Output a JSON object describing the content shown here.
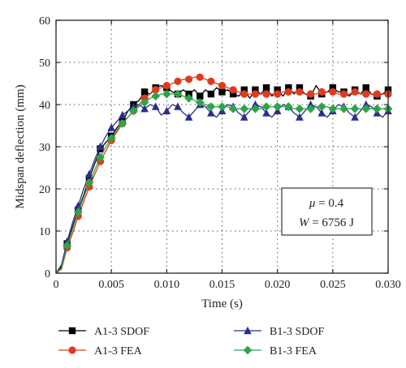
{
  "chart_data": {
    "type": "line",
    "xlabel": "Time (s)",
    "ylabel": "Midspan deflection (mm)",
    "xlim": [
      0,
      0.03
    ],
    "ylim": [
      0,
      60
    ],
    "xticks": [
      0,
      0.005,
      0.01,
      0.015,
      0.02,
      0.025,
      0.03
    ],
    "xtick_labels": [
      "0",
      "0.005",
      "0.010",
      "0.015",
      "0.020",
      "0.025",
      "0.030"
    ],
    "yticks": [
      0,
      10,
      20,
      30,
      40,
      50,
      60
    ],
    "ytick_labels": [
      "0",
      "10",
      "20",
      "30",
      "40",
      "50",
      "60"
    ],
    "grid": true,
    "legend_position": "bottom",
    "annotation": {
      "line1_symbol": "μ",
      "line1_rest": " = 0.4",
      "line2_symbol": "W",
      "line2_rest": " = 6756 J"
    },
    "series": [
      {
        "name": "A1-3 SDOF",
        "color": "#000000",
        "marker": "square",
        "x": [
          0,
          0.0005,
          0.001,
          0.0015,
          0.002,
          0.0025,
          0.003,
          0.0035,
          0.004,
          0.0045,
          0.005,
          0.0055,
          0.006,
          0.0065,
          0.007,
          0.0075,
          0.008,
          0.0085,
          0.009,
          0.0095,
          0.01,
          0.0105,
          0.011,
          0.0115,
          0.012,
          0.0125,
          0.013,
          0.0135,
          0.014,
          0.0145,
          0.015,
          0.0155,
          0.016,
          0.0165,
          0.017,
          0.0175,
          0.018,
          0.0185,
          0.019,
          0.0195,
          0.02,
          0.0205,
          0.021,
          0.0215,
          0.022,
          0.0225,
          0.023,
          0.0235,
          0.024,
          0.0245,
          0.025,
          0.0255,
          0.026,
          0.0265,
          0.027,
          0.0275,
          0.028,
          0.0285,
          0.029,
          0.0295,
          0.03
        ],
        "y": [
          0,
          1.5,
          7,
          11,
          15,
          18.5,
          22.5,
          26,
          29.5,
          31,
          32.5,
          34.5,
          36,
          38.5,
          40,
          41,
          43,
          42.5,
          44,
          44.5,
          44,
          43,
          42.5,
          43.5,
          42.5,
          43.5,
          42,
          43.5,
          42.5,
          44,
          43,
          43.5,
          42.5,
          42,
          43.5,
          41.5,
          43.5,
          42.5,
          44,
          42,
          43.5,
          42,
          44,
          42.5,
          44,
          42.5,
          42,
          44.5,
          42.5,
          43,
          44,
          43,
          43,
          42,
          43.5,
          42.5,
          44,
          42.5,
          42,
          42.5,
          43.5
        ],
        "marker_step": 2
      },
      {
        "name": "A1-3 FEA",
        "color": "#e03a1e",
        "marker": "circle",
        "x": [
          0,
          0.0005,
          0.001,
          0.0015,
          0.002,
          0.0025,
          0.003,
          0.0035,
          0.004,
          0.0045,
          0.005,
          0.0055,
          0.006,
          0.0065,
          0.007,
          0.0075,
          0.008,
          0.0085,
          0.009,
          0.0095,
          0.01,
          0.0105,
          0.011,
          0.0115,
          0.012,
          0.0125,
          0.013,
          0.0135,
          0.014,
          0.0145,
          0.015,
          0.0155,
          0.016,
          0.0165,
          0.017,
          0.0175,
          0.018,
          0.0185,
          0.019,
          0.0195,
          0.02,
          0.0205,
          0.021,
          0.0215,
          0.022,
          0.0225,
          0.023,
          0.0235,
          0.024,
          0.0245,
          0.025,
          0.0255,
          0.026,
          0.0265,
          0.027,
          0.0275,
          0.028,
          0.0285,
          0.029,
          0.0295,
          0.03
        ],
        "y": [
          0,
          1,
          6,
          9.5,
          13.5,
          17,
          20.5,
          23.5,
          26.5,
          29,
          31.5,
          33.5,
          35.5,
          37,
          38.5,
          40,
          41.5,
          42.5,
          43.5,
          44,
          44.5,
          45,
          45.5,
          46,
          46,
          46.5,
          46.5,
          46,
          45.5,
          45,
          44.5,
          44,
          43.5,
          43,
          42.5,
          42.5,
          42.5,
          42.5,
          42.5,
          42.5,
          42.5,
          43,
          43,
          43,
          43,
          42.5,
          42.5,
          42.5,
          43,
          43,
          43,
          42.5,
          42.5,
          42.5,
          43,
          42.5,
          42.5,
          42.5,
          42.5,
          42.5,
          42.5
        ],
        "marker_step": 2
      },
      {
        "name": "B1-3 SDOF",
        "color": "#2b2d8f",
        "marker": "triangle",
        "x": [
          0,
          0.0005,
          0.001,
          0.0015,
          0.002,
          0.0025,
          0.003,
          0.0035,
          0.004,
          0.0045,
          0.005,
          0.0055,
          0.006,
          0.0065,
          0.007,
          0.0075,
          0.008,
          0.0085,
          0.009,
          0.0095,
          0.01,
          0.0105,
          0.011,
          0.0115,
          0.012,
          0.0125,
          0.013,
          0.0135,
          0.014,
          0.0145,
          0.015,
          0.0155,
          0.016,
          0.0165,
          0.017,
          0.0175,
          0.018,
          0.0185,
          0.019,
          0.0195,
          0.02,
          0.0205,
          0.021,
          0.0215,
          0.022,
          0.0225,
          0.023,
          0.0235,
          0.024,
          0.0245,
          0.025,
          0.0255,
          0.026,
          0.0265,
          0.027,
          0.0275,
          0.028,
          0.0285,
          0.029,
          0.0295,
          0.03
        ],
        "y": [
          0,
          2,
          7.5,
          12,
          16,
          20,
          23.5,
          27,
          30,
          32.5,
          34.5,
          36,
          37.5,
          38.5,
          39.5,
          40,
          39,
          40,
          39.5,
          37.5,
          38.5,
          40,
          39.5,
          38,
          37,
          38.5,
          40,
          39.5,
          38,
          37,
          38.5,
          40,
          39.5,
          38,
          37,
          38.5,
          40,
          39.5,
          38,
          37,
          38.5,
          40,
          39.5,
          38,
          37,
          38.5,
          40,
          39.5,
          38,
          37,
          38.5,
          40,
          39.5,
          38,
          37,
          38.5,
          40,
          39.5,
          38,
          37,
          38.5
        ],
        "marker_step": 2
      },
      {
        "name": "B1-3 FEA",
        "color": "#2ea44a",
        "marker": "diamond",
        "x": [
          0,
          0.0005,
          0.001,
          0.0015,
          0.002,
          0.0025,
          0.003,
          0.0035,
          0.004,
          0.0045,
          0.005,
          0.0055,
          0.006,
          0.0065,
          0.007,
          0.0075,
          0.008,
          0.0085,
          0.009,
          0.0095,
          0.01,
          0.0105,
          0.011,
          0.0115,
          0.012,
          0.0125,
          0.013,
          0.0135,
          0.014,
          0.0145,
          0.015,
          0.0155,
          0.016,
          0.0165,
          0.017,
          0.0175,
          0.018,
          0.0185,
          0.019,
          0.0195,
          0.02,
          0.0205,
          0.021,
          0.0215,
          0.022,
          0.0225,
          0.023,
          0.0235,
          0.024,
          0.0245,
          0.025,
          0.0255,
          0.026,
          0.0265,
          0.027,
          0.0275,
          0.028,
          0.0285,
          0.029,
          0.0295,
          0.03
        ],
        "y": [
          0,
          1.2,
          6.5,
          10.5,
          14.5,
          18,
          21.5,
          24.5,
          27.5,
          30,
          32,
          34,
          35.5,
          37,
          38.5,
          39.5,
          40.5,
          41.5,
          42,
          42.5,
          42.5,
          42.5,
          42.5,
          42,
          41.5,
          41,
          40.5,
          40,
          39.5,
          39.5,
          39.5,
          39.5,
          39,
          39,
          39,
          39,
          39,
          39,
          39.5,
          39.5,
          39.5,
          39.5,
          39.5,
          39,
          39,
          39,
          39,
          39.5,
          39.5,
          39.5,
          39,
          39,
          39,
          39,
          39,
          39,
          39,
          39,
          39,
          39,
          39
        ],
        "marker_step": 2
      }
    ]
  }
}
